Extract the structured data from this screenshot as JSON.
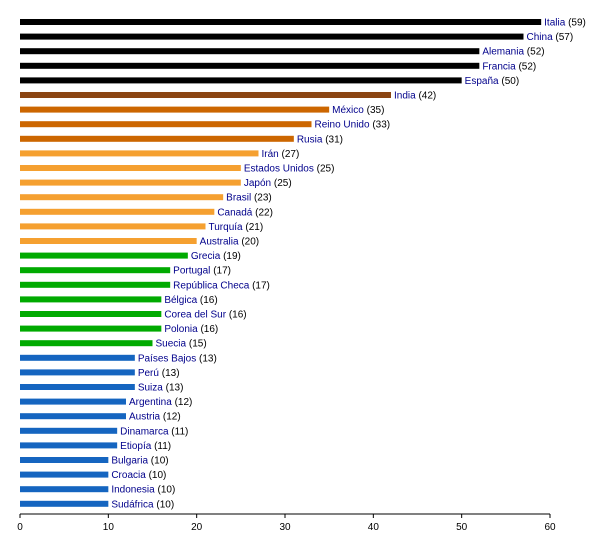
{
  "chart_data": {
    "type": "bar",
    "orientation": "horizontal",
    "title": "",
    "xlabel": "",
    "ylabel": "",
    "xlim": [
      0,
      60
    ],
    "x_ticks": [
      0,
      10,
      20,
      30,
      40,
      50,
      60
    ],
    "grid": false,
    "legend": "none",
    "categories": [
      "Italia",
      "China",
      "Alemania",
      "Francia",
      "España",
      "India",
      "México",
      "Reino Unido",
      "Rusia",
      "Irán",
      "Estados Unidos",
      "Japón",
      "Brasil",
      "Canadá",
      "Turquía",
      "Australia",
      "Grecia",
      "Portugal",
      "República Checa",
      "Bélgica",
      "Corea del Sur",
      "Polonia",
      "Suecia",
      "Países Bajos",
      "Perú",
      "Suiza",
      "Argentina",
      "Austria",
      "Dinamarca",
      "Etiopía",
      "Bulgaria",
      "Croacia",
      "Indonesia",
      "Sudáfrica"
    ],
    "values": [
      59,
      57,
      52,
      52,
      50,
      42,
      35,
      33,
      31,
      27,
      25,
      25,
      23,
      22,
      21,
      20,
      19,
      17,
      17,
      16,
      16,
      16,
      15,
      13,
      13,
      13,
      12,
      12,
      11,
      11,
      10,
      10,
      10,
      10
    ],
    "value_labels": [
      "(59)",
      "(57)",
      "(52)",
      "(52)",
      "(50)",
      "(42)",
      "(35)",
      "(33)",
      "(31)",
      "(27)",
      "(25)",
      "(25)",
      "(23)",
      "(22)",
      "(21)",
      "(20)",
      "(19)",
      "(17)",
      "(17)",
      "(16)",
      "(16)",
      "(16)",
      "(15)",
      "(13)",
      "(13)",
      "(13)",
      "(12)",
      "(12)",
      "(11)",
      "(11)",
      "(10)",
      "(10)",
      "(10)",
      "(10)"
    ],
    "bar_colors": [
      "#000000",
      "#000000",
      "#000000",
      "#000000",
      "#000000",
      "#8b4513",
      "#cc6600",
      "#cc6600",
      "#cc6600",
      "#f5a030",
      "#f5a030",
      "#f5a030",
      "#f5a030",
      "#f5a030",
      "#f5a030",
      "#f5a030",
      "#00aa00",
      "#00aa00",
      "#00aa00",
      "#00aa00",
      "#00aa00",
      "#00aa00",
      "#00aa00",
      "#1565c0",
      "#1565c0",
      "#1565c0",
      "#1565c0",
      "#1565c0",
      "#1565c0",
      "#1565c0",
      "#1565c0",
      "#1565c0",
      "#1565c0",
      "#1565c0"
    ]
  },
  "colors": {
    "label_name": "#00008b",
    "label_value": "#000000",
    "axis": "#000000"
  }
}
